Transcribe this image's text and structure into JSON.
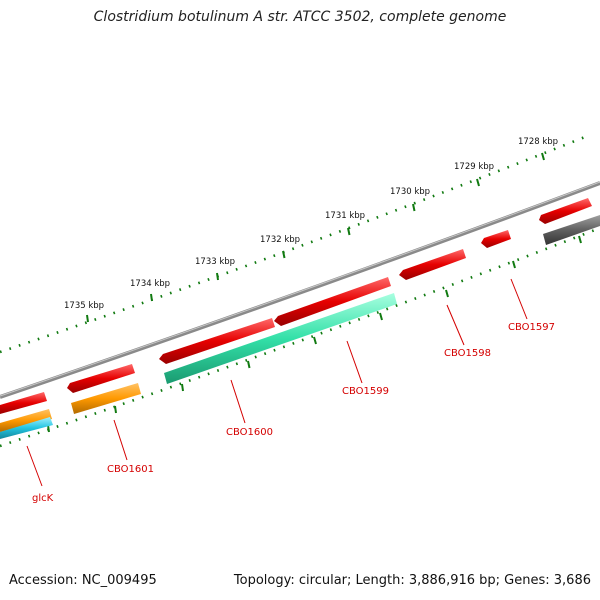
{
  "title": "Clostridium botulinum A str. ATCC 3502, complete genome",
  "footer": {
    "accession": "Accession: NC_009495",
    "topology": "Topology: circular; Length: 3,886,916 bp; Genes: 3,686"
  },
  "ruler": {
    "labels": [
      "1728 kbp",
      "1729 kbp",
      "1730 kbp",
      "1731 kbp",
      "1732 kbp",
      "1733 kbp",
      "1734 kbp",
      "1735 kbp"
    ],
    "tick_color": "#117a11"
  },
  "colors": {
    "backbone": "#8a8a8a",
    "cds": "#e60000",
    "orange": "#ff9900",
    "teal": "#33e0a8",
    "cyan": "#22c4e0",
    "gray": "#606060",
    "label": "#d40000"
  },
  "genes": [
    {
      "label": "CBO1597"
    },
    {
      "label": "CBO1598"
    },
    {
      "label": "CBO1599"
    },
    {
      "label": "CBO1600"
    },
    {
      "label": "CBO1601"
    },
    {
      "label": "glcK"
    }
  ]
}
